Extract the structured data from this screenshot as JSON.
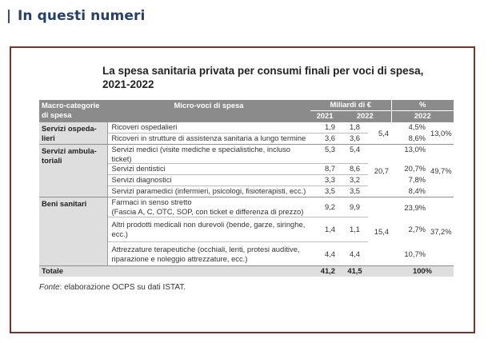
{
  "section": {
    "title": "In questi numeri"
  },
  "figure": {
    "title_line1": "La spesa sanitaria privata per consumi finali per voci di spesa,",
    "title_line2": "2021-2022",
    "headers": {
      "macro": "Macro-categorie",
      "macro_line2": "di spesa",
      "micro": "Micro-voci di spesa",
      "mld": "Miliardi di €",
      "pct": "%",
      "y2021": "2021",
      "y2022": "2022",
      "y2022_pct": "2022"
    },
    "groups": [
      {
        "name_line1": "Servizi ospeda-",
        "name_line2": "lieri",
        "subtotal": "5,4",
        "pct_total": "13,0%",
        "rows": [
          {
            "label": "Ricoveri ospedalieri",
            "v2021": "1,9",
            "v2022": "1,8",
            "pct": "4,5%"
          },
          {
            "label": "Ricoveri in strutture di assistenza sanitaria a lungo termine",
            "v2021": "3,6",
            "v2022": "3,6",
            "pct": "8,6%"
          }
        ]
      },
      {
        "name_line1": "Servizi ambula-",
        "name_line2": "toriali",
        "subtotal": "20,7",
        "pct_total": "49,7%",
        "rows": [
          {
            "label": "Servizi medici (visite mediche e specialistiche, incluso ticket)",
            "v2021": "5,3",
            "v2022": "5,4",
            "pct": "13,0%"
          },
          {
            "label": "Servizi dentistici",
            "v2021": "8,7",
            "v2022": "8,6",
            "pct": "20,7%"
          },
          {
            "label": "Servizi diagnostici",
            "v2021": "3,3",
            "v2022": "3,2",
            "pct": "7,8%"
          },
          {
            "label": "Servizi paramedici (infermieri, psicologi, fisioterapisti, ecc.)",
            "v2021": "3,5",
            "v2022": "3,5",
            "pct": "8,4%"
          }
        ]
      },
      {
        "name_line1": "Beni sanitari",
        "name_line2": "",
        "subtotal": "15,4",
        "pct_total": "37,2%",
        "rows": [
          {
            "label": "Farmaci in senso stretto",
            "label2": "(Fascia A, C, OTC, SOP, con ticket e differenza di prezzo)",
            "v2021": "9,2",
            "v2022": "9,9",
            "pct": "23,9%"
          },
          {
            "label": "Altri prodotti medicali non durevoli (bende, garze, siringhe,",
            "label2": "ecc.)",
            "v2021": "1,4",
            "v2022": "1,1",
            "pct": "2,7%"
          },
          {
            "label": "Attrezzature terapeutiche (occhiali, lenti, protesi auditive,",
            "label2": "riparazione e noleggio attrezzature, ecc.)",
            "v2021": "4,4",
            "v2022": "4,4",
            "pct": "10,7%"
          }
        ]
      }
    ],
    "total": {
      "label": "Totale",
      "v2021": "41,2",
      "v2022": "41,5",
      "pct": "100%"
    },
    "source": {
      "label": "Fonte",
      "text": ": elaborazione OCPS su dati ISTAT."
    }
  }
}
